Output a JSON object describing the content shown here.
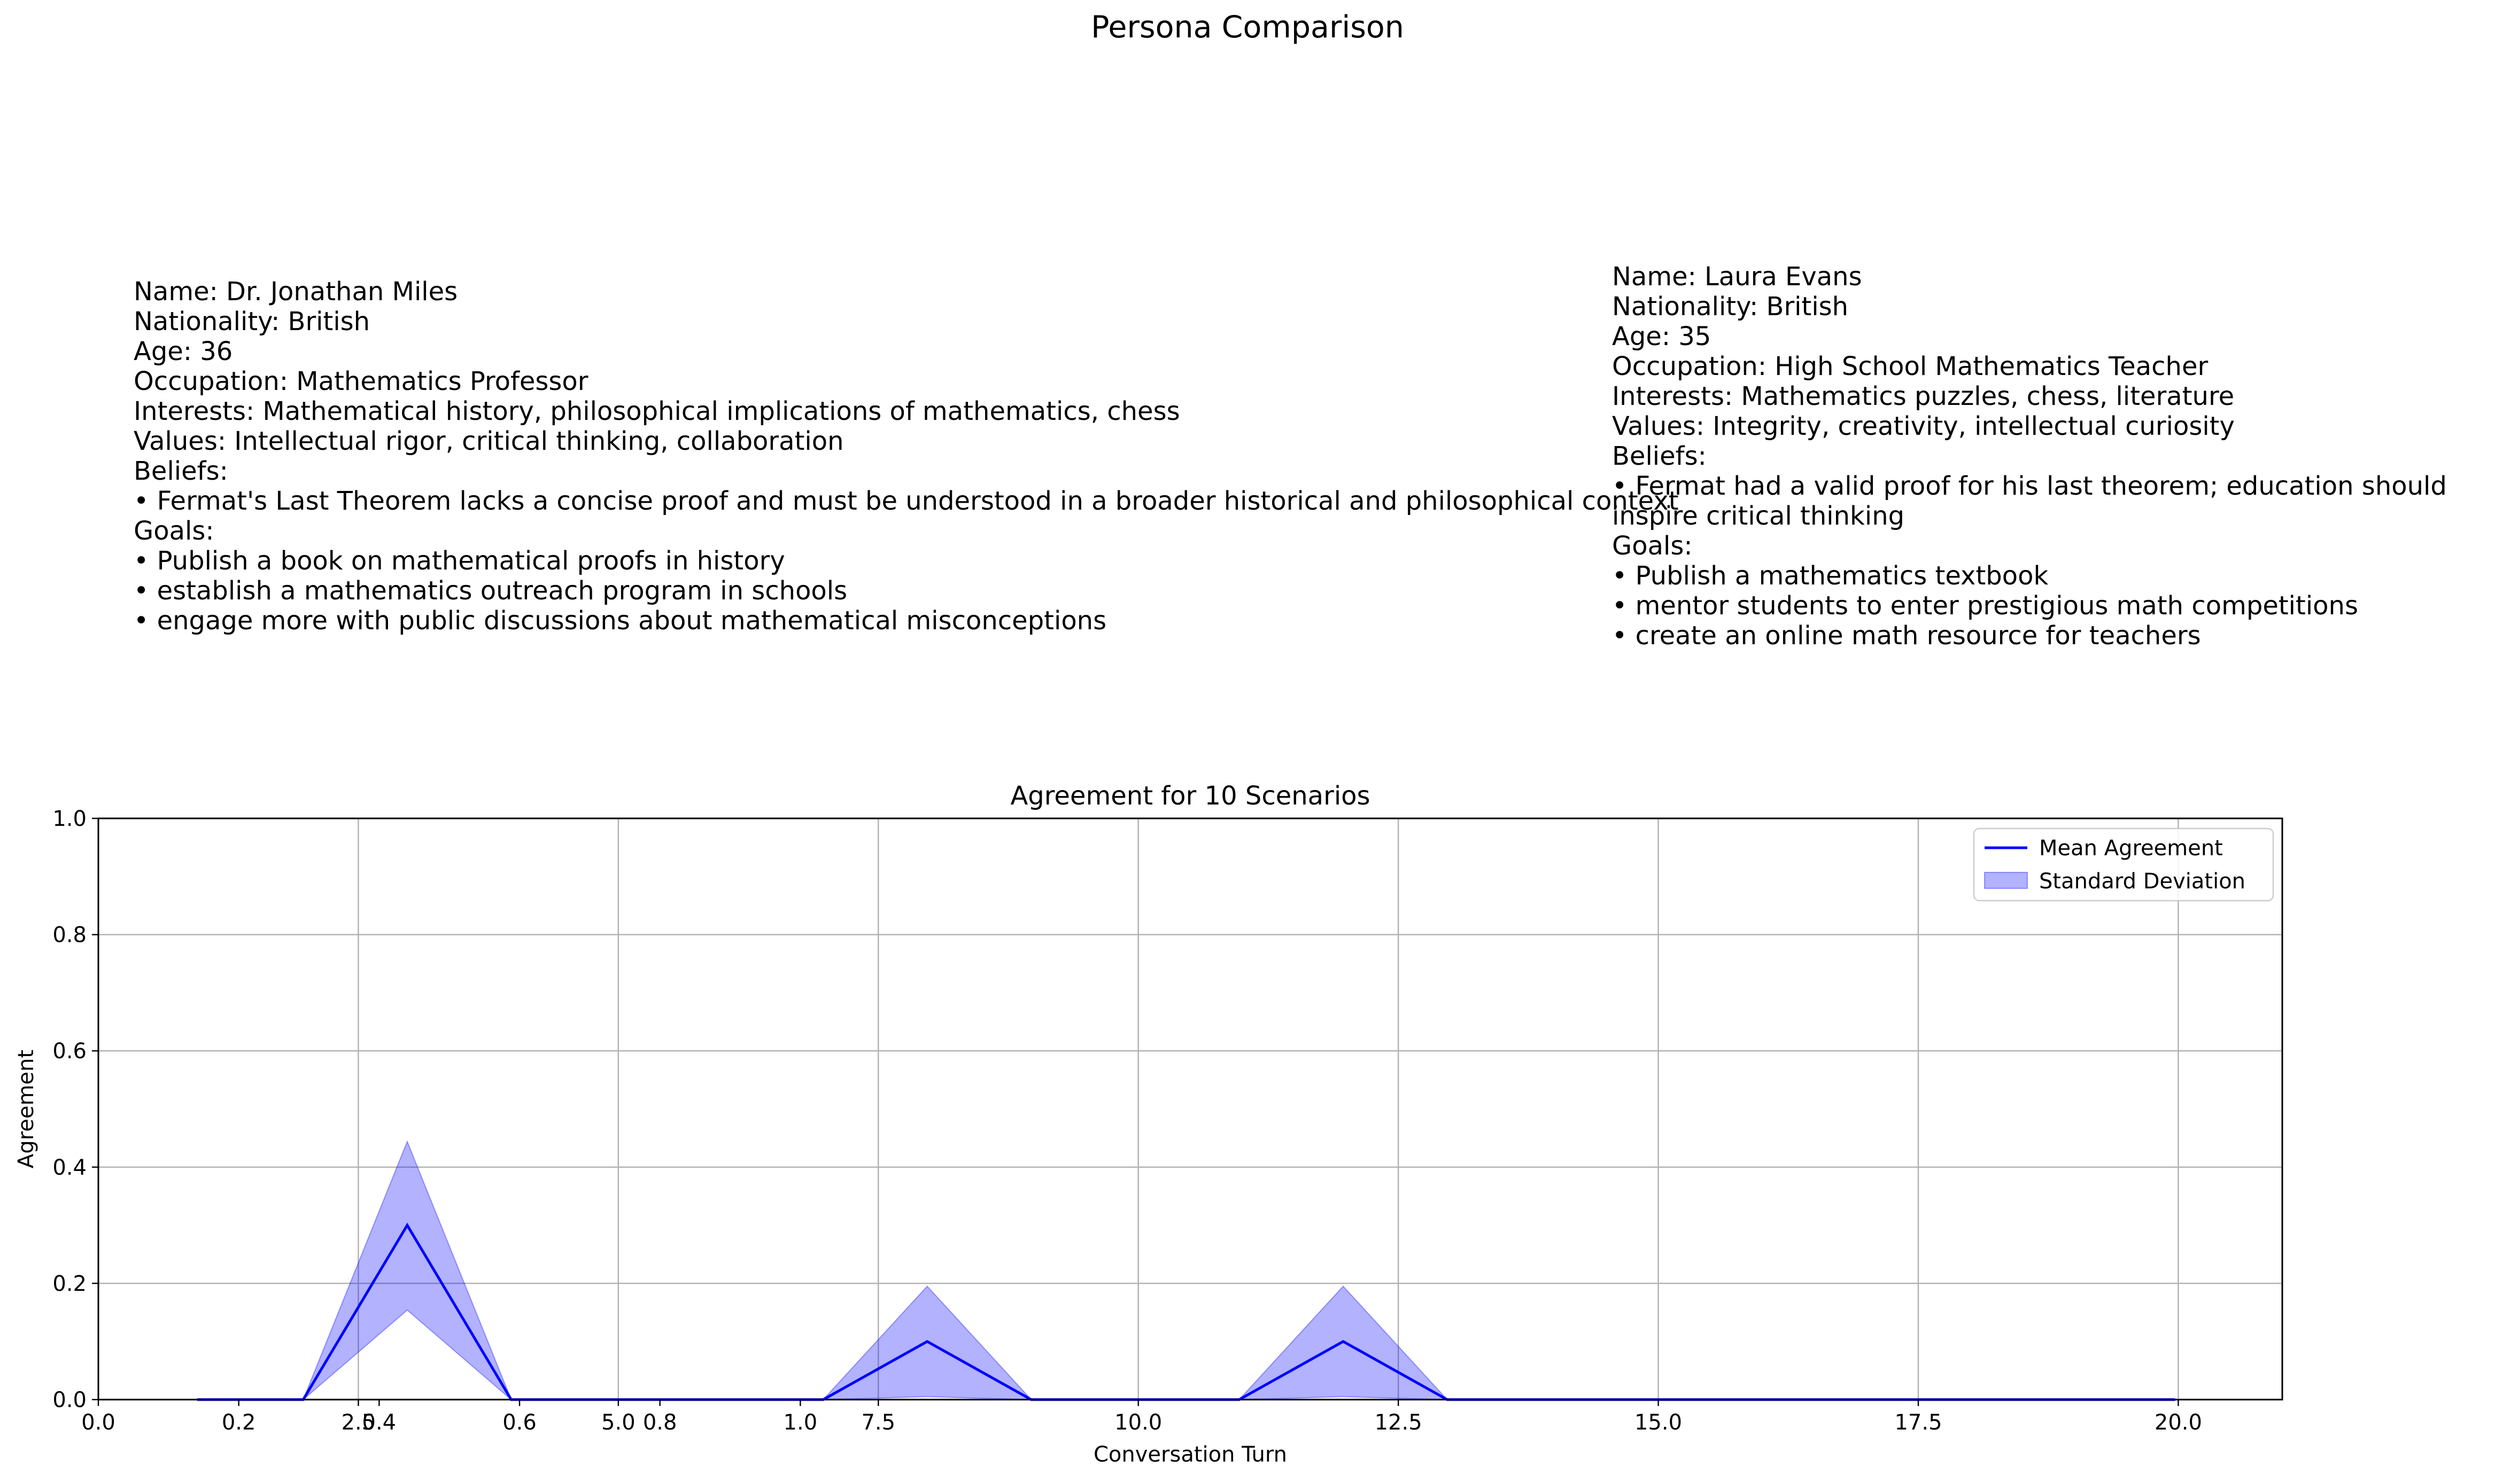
{
  "figure_title": "Persona Comparison",
  "personas": [
    {
      "lines": [
        "Name: Dr. Jonathan Miles",
        "Nationality: British",
        "Age: 36",
        "Occupation: Mathematics Professor",
        "Interests: Mathematical history, philosophical implications of mathematics, chess",
        "Values: Intellectual rigor, critical thinking, collaboration",
        "Beliefs:",
        "• Fermat's Last Theorem lacks a concise proof and must be understood in a broader historical and philosophical context",
        "Goals:",
        "• Publish a book on mathematical proofs in history",
        "• establish a mathematics outreach program in schools",
        "• engage more with public discussions about mathematical misconceptions"
      ]
    },
    {
      "lines": [
        "Name: Laura Evans",
        "Nationality: British",
        "Age: 35",
        "Occupation: High School Mathematics Teacher",
        "Interests: Mathematics puzzles, chess, literature",
        "Values: Integrity, creativity, intellectual curiosity",
        "Beliefs:",
        "• Fermat had a valid proof for his last theorem; education should",
        "inspire critical thinking",
        "Goals:",
        "• Publish a mathematics textbook",
        "• mentor students to enter prestigious math competitions",
        "• create an online math resource for teachers"
      ]
    }
  ],
  "chart_data": {
    "type": "line",
    "title": "Agreement for 10 Scenarios",
    "xlabel": "Conversation Turn",
    "ylabel": "Agreement",
    "xlim": [
      0,
      21
    ],
    "ylim": [
      0,
      1
    ],
    "x_ticks": [
      0,
      2.5,
      5,
      7.5,
      10,
      12.5,
      15,
      17.5,
      20
    ],
    "x_tick_labels": [
      "0.0",
      "2.5",
      "5.0",
      "7.5",
      "10.0",
      "12.5",
      "15.0",
      "17.5",
      "20.0"
    ],
    "y_ticks": [
      0,
      0.2,
      0.4,
      0.6,
      0.8,
      1.0
    ],
    "y_tick_labels": [
      "0.0",
      "0.2",
      "0.4",
      "0.6",
      "0.8",
      "1.0"
    ],
    "overlay_x_tick_labels": [
      "0.2",
      "0.4",
      "0.6",
      "0.8",
      "1.0"
    ],
    "overlay_x_tick_positions": [
      1.35,
      2.7,
      4.05,
      5.4,
      6.75
    ],
    "grid": true,
    "legend_placement": "top-right",
    "x": [
      0.95,
      1.97,
      2.97,
      3.97,
      4.97,
      5.97,
      6.97,
      7.97,
      8.97,
      9.97,
      10.97,
      11.97,
      12.97,
      13.97,
      14.97,
      15.97,
      16.97,
      17.97,
      18.97,
      19.97
    ],
    "series": [
      {
        "name": "Mean Agreement",
        "type": "line",
        "color": "#0000ff",
        "values": [
          0,
          0,
          0.3,
          0,
          0,
          0,
          0,
          0.1,
          0,
          0,
          0,
          0.1,
          0,
          0,
          0,
          0,
          0,
          0,
          0,
          0
        ]
      },
      {
        "name": "Standard Deviation",
        "type": "band",
        "color": "#0000ff",
        "lower": [
          0,
          0,
          0.154,
          0,
          0,
          0,
          0,
          0.005,
          0,
          0,
          0,
          0.005,
          0,
          0,
          0,
          0,
          0,
          0,
          0,
          0
        ],
        "upper": [
          0,
          0,
          0.444,
          0,
          0,
          0,
          0,
          0.195,
          0,
          0,
          0,
          0.195,
          0,
          0,
          0,
          0,
          0,
          0,
          0,
          0
        ]
      }
    ]
  }
}
